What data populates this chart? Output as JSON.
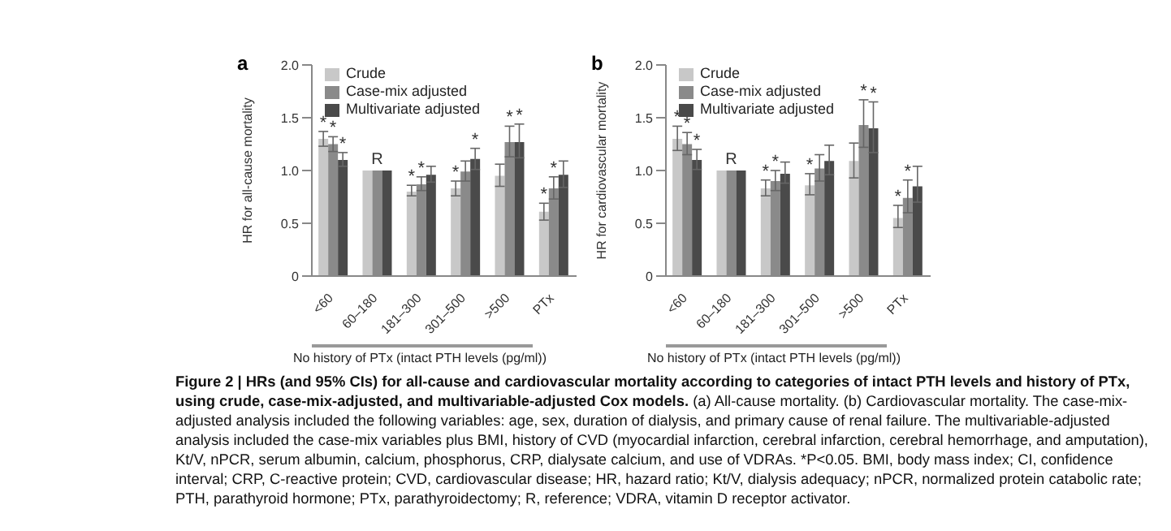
{
  "chart_data": [
    {
      "type": "bar",
      "title": "a",
      "ylabel": "HR for all-cause mortality",
      "xlabel": "No history of PTx (intact PTH levels (pg/ml))",
      "categories": [
        "<60",
        "60–180",
        "181–300",
        "301–500",
        ">500",
        "PTx"
      ],
      "series": [
        {
          "name": "Crude",
          "color": "#c8c8c8",
          "values": [
            1.3,
            1.0,
            0.8,
            0.83,
            0.95,
            0.61
          ],
          "errors": [
            [
              1.23,
              1.37
            ],
            null,
            [
              0.76,
              0.86
            ],
            [
              0.76,
              0.9
            ],
            [
              0.85,
              1.06
            ],
            [
              0.53,
              0.69
            ]
          ]
        },
        {
          "name": "Case-mix adjusted",
          "color": "#8a8a8a",
          "values": [
            1.25,
            1.0,
            0.87,
            0.99,
            1.27,
            0.83
          ],
          "errors": [
            [
              1.18,
              1.32
            ],
            null,
            [
              0.81,
              0.94
            ],
            [
              0.9,
              1.09
            ],
            [
              1.13,
              1.42
            ],
            [
              0.73,
              0.94
            ]
          ]
        },
        {
          "name": "Multivariate adjusted",
          "color": "#4a4a4a",
          "values": [
            1.1,
            1.0,
            0.96,
            1.11,
            1.27,
            0.96
          ],
          "errors": [
            [
              1.04,
              1.17
            ],
            null,
            [
              0.89,
              1.04
            ],
            [
              1.01,
              1.21
            ],
            [
              1.12,
              1.44
            ],
            [
              0.84,
              1.09
            ]
          ]
        }
      ],
      "ylim": [
        0,
        2
      ],
      "yticks": [
        0,
        {
          "value": 0.5,
          "label": "0.5"
        },
        {
          "value": 1,
          "label": "1.0"
        },
        {
          "value": 1.5,
          "label": "1.5"
        },
        {
          "value": 2,
          "label": "2.0"
        }
      ],
      "grid": false,
      "legend": "top left",
      "annotations": [
        {
          "text": "*",
          "x": "<60",
          "y": 1.37
        },
        {
          "text": "*",
          "x": "<60",
          "y": 1.32
        },
        {
          "text": "*",
          "x": "<60",
          "y": 1.17
        },
        {
          "text": "R",
          "x": "60–180",
          "y": 1.0
        },
        {
          "text": "*",
          "x": "181–300",
          "y": 0.86
        },
        {
          "text": "*",
          "x": "181–300",
          "y": 0.94
        },
        {
          "text": "*",
          "x": "301–500",
          "y": 0.9
        },
        {
          "text": "*",
          "x": "301–500",
          "y": 1.21
        },
        {
          "text": "*",
          "x": ">500",
          "y": 1.42
        },
        {
          "text": "*",
          "x": ">500",
          "y": 1.44
        },
        {
          "text": "*",
          "x": "PTx",
          "y": 0.69
        },
        {
          "text": "*",
          "x": "PTx",
          "y": 0.94
        },
        "Figure 2 | HRs (and 95% CIs) for all-cause and cardiovascular mortality according to categories of intact PTH levels and history of PTx, using crude, case-mix-adjusted, and multivariable-adjusted Cox models.",
        "(a) All-cause mortality. (b) Cardiovascular mortality. The case-mix-adjusted analysis included the following variables: age, sex, duration of dialysis, and primary cause of renal failure. The multivariable-adjusted analysis included the case-mix variables plus BMI, history of CVD (myocardial infarction, cerebral infarction, cerebral hemorrhage, and amputation), Kt/V, nPCR, serum albumin, calcium, phosphorus, CRP, dialysate calcium, and use of VDRAs. *P<0.05. BMI, body mass index; CI, confidence interval; CRP, C-reactive protein; CVD, cardiovascular disease; HR, hazard ratio; Kt/V, dialysis adequacy; nPCR, normalized protein catabolic rate; PTH, parathyroid hormone; PTx, parathyroidectomy; R, reference; VDRA, vitamin D receptor activator."
      ]
    },
    {
      "type": "bar",
      "title": "b",
      "ylabel": "HR for cardiovascular mortality",
      "xlabel": "No history of PTx (intact PTH levels (pg/ml))",
      "categories": [
        "<60",
        "60–180",
        "181–300",
        "301–500",
        ">500",
        "PTx"
      ],
      "series": [
        {
          "name": "Crude",
          "color": "#c8c8c8",
          "values": [
            1.3,
            1.0,
            0.83,
            0.86,
            1.09,
            0.55
          ],
          "errors": [
            [
              1.19,
              1.42
            ],
            null,
            [
              0.76,
              0.91
            ],
            [
              0.77,
              0.97
            ],
            [
              0.93,
              1.26
            ],
            [
              0.46,
              0.67
            ]
          ]
        },
        {
          "name": "Case-mix adjusted",
          "color": "#8a8a8a",
          "values": [
            1.25,
            1.0,
            0.9,
            1.02,
            1.43,
            0.74
          ],
          "errors": [
            [
              1.15,
              1.36
            ],
            null,
            [
              0.81,
              1.0
            ],
            [
              0.9,
              1.15
            ],
            [
              1.22,
              1.67
            ],
            [
              0.6,
              0.91
            ]
          ]
        },
        {
          "name": "Multivariate adjusted",
          "color": "#4a4a4a",
          "values": [
            1.1,
            1.0,
            0.97,
            1.09,
            1.4,
            0.85
          ],
          "errors": [
            [
              1.01,
              1.2
            ],
            null,
            [
              0.88,
              1.08
            ],
            [
              0.96,
              1.24
            ],
            [
              1.17,
              1.65
            ],
            [
              0.7,
              1.04
            ]
          ]
        }
      ],
      "ylim": [
        0,
        2
      ],
      "yticks": [
        0,
        {
          "value": 0.5,
          "label": "0.5"
        },
        {
          "value": 1,
          "label": "1.0"
        },
        {
          "value": 1.5,
          "label": "1.5"
        },
        {
          "value": 2,
          "label": "2.0"
        }
      ],
      "grid": false,
      "legend": "top left",
      "annotations": [
        {
          "text": "*",
          "x": "<60",
          "y": 1.42
        },
        {
          "text": "*",
          "x": "<60",
          "y": 1.36
        },
        {
          "text": "*",
          "x": "<60",
          "y": 1.2
        },
        {
          "text": "R",
          "x": "60–180",
          "y": 1.0
        },
        {
          "text": "*",
          "x": "181–300",
          "y": 0.91
        },
        {
          "text": "*",
          "x": "181–300",
          "y": 1.0
        },
        {
          "text": "*",
          "x": "301–500",
          "y": 0.97
        },
        {
          "text": "*",
          "x": ">500",
          "y": 1.67
        },
        {
          "text": "*",
          "x": ">500",
          "y": 1.65
        },
        {
          "text": "*",
          "x": "PTx",
          "y": 0.67
        },
        {
          "text": "*",
          "x": "PTx",
          "y": 0.91
        }
      ]
    }
  ]
}
